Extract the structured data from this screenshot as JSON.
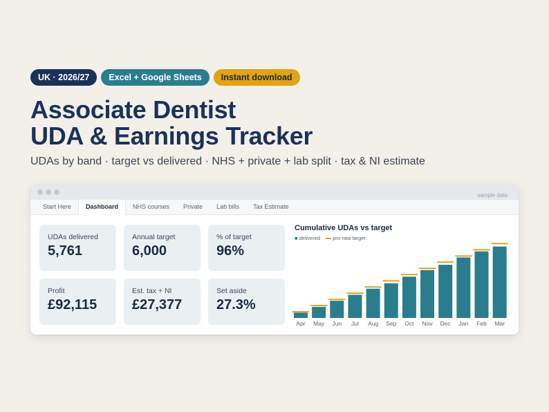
{
  "badges": [
    "UK · 2026/27",
    "Excel + Google Sheets",
    "Instant download"
  ],
  "title_line1": "Associate Dentist",
  "title_line2": "UDA & Earnings Tracker",
  "subtitle": "UDAs by band · target vs delivered · NHS + private + lab split · tax & NI estimate",
  "window": {
    "sample_label": "sample data",
    "tabs": [
      "Start Here",
      "Dashboard",
      "NHS courses",
      "Private",
      "Lab bills",
      "Tax Estimate"
    ],
    "active_tab": "Dashboard"
  },
  "kpis": [
    {
      "label": "UDAs delivered",
      "value": "5,761"
    },
    {
      "label": "Annual target",
      "value": "6,000"
    },
    {
      "label": "% of target",
      "value": "96%"
    },
    {
      "label": "Profit",
      "value": "£92,115"
    },
    {
      "label": "Est. tax + NI",
      "value": "£27,377"
    },
    {
      "label": "Set aside",
      "value": "27.3%"
    }
  ],
  "colors": {
    "navy": "#1b3158",
    "teal": "#2a7d8c",
    "gold": "#e0a414"
  },
  "chart_data": {
    "type": "bar",
    "title": "Cumulative UDAs vs target",
    "legend": [
      "delivered",
      "pro-rata target"
    ],
    "categories": [
      "Apr",
      "May",
      "Jun",
      "Jul",
      "Aug",
      "Sep",
      "Oct",
      "Nov",
      "Dec",
      "Jan",
      "Feb",
      "Mar"
    ],
    "series": [
      {
        "name": "delivered",
        "values": [
          430,
          890,
          1390,
          1870,
          2360,
          2800,
          3330,
          3860,
          4290,
          4880,
          5370,
          5761
        ]
      },
      {
        "name": "pro-rata target",
        "values": [
          500,
          1000,
          1500,
          2000,
          2500,
          3000,
          3500,
          4000,
          4500,
          5000,
          5500,
          6000
        ]
      }
    ],
    "ylim": [
      0,
      6300
    ],
    "grid": false,
    "legend_position": "top-left"
  }
}
